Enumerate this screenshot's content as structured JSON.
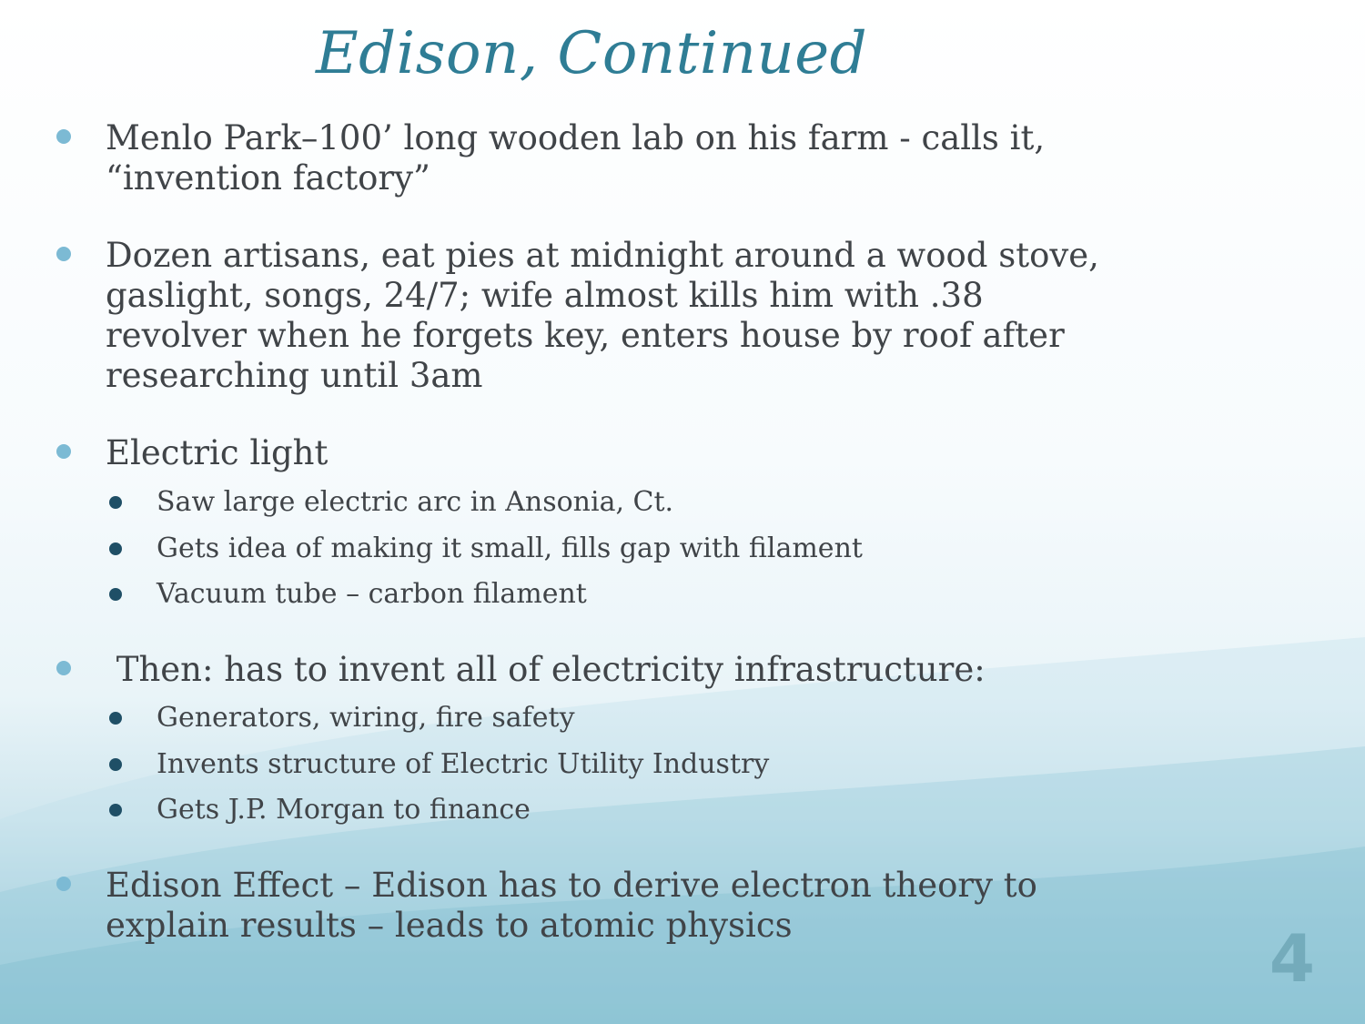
{
  "slide": {
    "title": "Edison, Continued",
    "slide_number": "4",
    "bullets": [
      {
        "text": "Menlo Park–100’ long wooden lab on his farm - calls it, “invention factory”"
      },
      {
        "text": "Dozen artisans, eat pies at midnight around a wood stove, gaslight, songs, 24/7; wife almost kills him with .38 revolver when he forgets key, enters house by roof after researching until 3am"
      },
      {
        "text": "Electric light",
        "sub": [
          "Saw large electric arc in Ansonia, Ct.",
          "Gets idea of making it small, fills gap with filament",
          "Vacuum tube – carbon filament"
        ]
      },
      {
        "text": " Then: has to invent all of electricity infrastructure:",
        "sub": [
          "Generators, wiring, fire safety",
          "Invents structure of Electric Utility Industry",
          "Gets J.P. Morgan to finance"
        ]
      },
      {
        "text": "Edison Effect – Edison has to derive electron theory to explain results – leads to atomic physics"
      }
    ]
  },
  "colors": {
    "title": "#2f7d95",
    "bullet_primary": "#7cbad4",
    "bullet_secondary": "#1f4f66",
    "text": "#404448"
  }
}
